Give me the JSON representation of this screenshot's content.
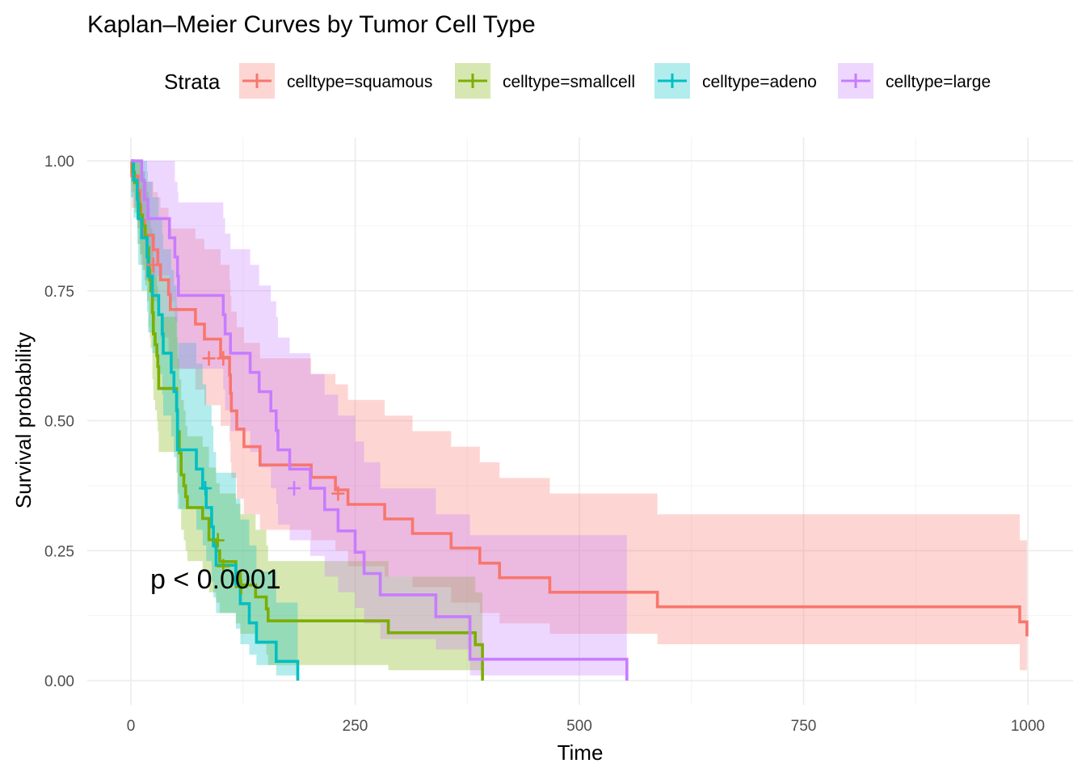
{
  "chart_data": {
    "type": "line",
    "title": "Kaplan–Meier Curves by Tumor Cell Type",
    "xlabel": "Time",
    "ylabel": "Survival probability",
    "xlim": [
      0,
      1000
    ],
    "ylim": [
      0,
      1
    ],
    "x_ticks": [
      0,
      250,
      500,
      750,
      1000
    ],
    "x_tick_labels": [
      "0",
      "250",
      "500",
      "750",
      "1000"
    ],
    "y_ticks": [
      0,
      0.25,
      0.5,
      0.75,
      1
    ],
    "y_tick_labels": [
      "0.00",
      "0.25",
      "0.50",
      "0.75",
      "1.00"
    ],
    "grid": true,
    "legend": {
      "title": "Strata",
      "position": "top"
    },
    "annotation": "p < 0.0001",
    "series": [
      {
        "name": "celltype=squamous",
        "color": "#F8766D",
        "times": [
          0,
          1,
          8,
          10,
          11,
          15,
          25,
          30,
          33,
          42,
          44,
          72,
          82,
          100,
          110,
          111,
          112,
          118,
          126,
          144,
          201,
          228,
          242,
          283,
          314,
          357,
          389,
          411,
          467,
          587,
          991,
          999
        ],
        "surv": [
          1,
          0.971,
          0.943,
          0.914,
          0.886,
          0.857,
          0.829,
          0.8,
          0.771,
          0.743,
          0.714,
          0.686,
          0.657,
          0.622,
          0.588,
          0.553,
          0.519,
          0.484,
          0.45,
          0.415,
          0.391,
          0.367,
          0.339,
          0.311,
          0.283,
          0.255,
          0.226,
          0.198,
          0.17,
          0.142,
          0.113,
          0.085
        ],
        "lower": [
          0.94,
          0.91,
          0.87,
          0.84,
          0.8,
          0.77,
          0.73,
          0.7,
          0.66,
          0.63,
          0.6,
          0.56,
          0.53,
          0.49,
          0.46,
          0.42,
          0.39,
          0.35,
          0.32,
          0.29,
          0.27,
          0.25,
          0.22,
          0.2,
          0.18,
          0.15,
          0.13,
          0.11,
          0.09,
          0.07,
          0.02,
          0.0
        ],
        "upper": [
          1.0,
          1.0,
          1.0,
          1.0,
          0.98,
          0.96,
          0.94,
          0.93,
          0.91,
          0.89,
          0.87,
          0.85,
          0.83,
          0.8,
          0.77,
          0.74,
          0.71,
          0.68,
          0.65,
          0.62,
          0.59,
          0.57,
          0.54,
          0.51,
          0.48,
          0.45,
          0.42,
          0.39,
          0.36,
          0.32,
          0.27,
          0.25
        ],
        "censored": [
          [
            25,
            0.8
          ],
          [
            87,
            0.62
          ],
          [
            103,
            0.62
          ],
          [
            231,
            0.36
          ]
        ]
      },
      {
        "name": "celltype=smallcell",
        "color": "#7CAE00",
        "times": [
          0,
          2,
          4,
          7,
          8,
          10,
          13,
          16,
          18,
          20,
          21,
          22,
          24,
          25,
          27,
          29,
          30,
          31,
          51,
          52,
          54,
          56,
          59,
          61,
          63,
          80,
          87,
          95,
          99,
          117,
          122,
          139,
          151,
          153,
          287,
          384,
          392
        ],
        "surv": [
          1,
          0.979,
          0.958,
          0.938,
          0.917,
          0.896,
          0.875,
          0.854,
          0.833,
          0.792,
          0.771,
          0.75,
          0.708,
          0.667,
          0.646,
          0.625,
          0.604,
          0.562,
          0.521,
          0.479,
          0.438,
          0.396,
          0.375,
          0.354,
          0.333,
          0.312,
          0.271,
          0.25,
          0.229,
          0.208,
          0.184,
          0.161,
          0.138,
          0.115,
          0.092,
          0.069,
          0.0
        ],
        "lower": [
          0.96,
          0.94,
          0.9,
          0.87,
          0.84,
          0.82,
          0.79,
          0.76,
          0.73,
          0.68,
          0.66,
          0.64,
          0.58,
          0.54,
          0.52,
          0.5,
          0.48,
          0.44,
          0.4,
          0.36,
          0.33,
          0.29,
          0.27,
          0.25,
          0.23,
          0.21,
          0.17,
          0.15,
          0.13,
          0.11,
          0.09,
          0.07,
          0.05,
          0.03,
          0.02,
          0.02,
          0.0
        ],
        "upper": [
          1.0,
          1.0,
          1.0,
          1.0,
          1.0,
          1.0,
          0.98,
          0.96,
          0.94,
          0.91,
          0.89,
          0.87,
          0.84,
          0.8,
          0.78,
          0.76,
          0.74,
          0.7,
          0.66,
          0.62,
          0.58,
          0.54,
          0.52,
          0.49,
          0.47,
          0.45,
          0.41,
          0.38,
          0.36,
          0.34,
          0.32,
          0.29,
          0.26,
          0.23,
          0.2,
          0.17,
          0.0
        ],
        "censored": [
          [
            97,
            0.27
          ],
          [
            103,
            0.22
          ],
          [
            123,
            0.18
          ]
        ]
      },
      {
        "name": "celltype=adeno",
        "color": "#00BFC4",
        "times": [
          0,
          3,
          7,
          8,
          12,
          18,
          19,
          24,
          31,
          35,
          36,
          45,
          48,
          51,
          52,
          73,
          80,
          84,
          90,
          92,
          95,
          117,
          122,
          132,
          140,
          162,
          186
        ],
        "surv": [
          1,
          0.963,
          0.926,
          0.889,
          0.852,
          0.815,
          0.778,
          0.741,
          0.704,
          0.667,
          0.63,
          0.593,
          0.556,
          0.519,
          0.444,
          0.407,
          0.37,
          0.333,
          0.296,
          0.259,
          0.222,
          0.185,
          0.148,
          0.111,
          0.074,
          0.037,
          0.0
        ],
        "lower": [
          0.93,
          0.89,
          0.84,
          0.8,
          0.75,
          0.71,
          0.67,
          0.63,
          0.59,
          0.55,
          0.51,
          0.47,
          0.43,
          0.4,
          0.33,
          0.29,
          0.26,
          0.23,
          0.19,
          0.16,
          0.13,
          0.1,
          0.07,
          0.05,
          0.03,
          0.01,
          0.0
        ],
        "upper": [
          1.0,
          1.0,
          1.0,
          1.0,
          1.0,
          0.98,
          0.96,
          0.93,
          0.89,
          0.86,
          0.83,
          0.79,
          0.76,
          0.72,
          0.65,
          0.61,
          0.57,
          0.53,
          0.49,
          0.44,
          0.4,
          0.35,
          0.31,
          0.26,
          0.21,
          0.15,
          0.0
        ],
        "censored": [
          [
            83,
            0.37
          ]
        ]
      },
      {
        "name": "celltype=large",
        "color": "#C77CFF",
        "times": [
          0,
          12,
          15,
          19,
          43,
          49,
          52,
          53,
          103,
          105,
          111,
          133,
          143,
          156,
          162,
          164,
          177,
          200,
          216,
          231,
          250,
          260,
          278,
          340,
          378,
          553
        ],
        "surv": [
          1,
          0.963,
          0.926,
          0.889,
          0.852,
          0.815,
          0.778,
          0.741,
          0.704,
          0.667,
          0.63,
          0.593,
          0.556,
          0.519,
          0.481,
          0.444,
          0.407,
          0.37,
          0.329,
          0.288,
          0.247,
          0.206,
          0.165,
          0.123,
          0.041,
          0.0
        ],
        "lower": [
          1.0,
          0.89,
          0.84,
          0.78,
          0.73,
          0.69,
          0.65,
          0.6,
          0.56,
          0.52,
          0.48,
          0.44,
          0.41,
          0.37,
          0.34,
          0.3,
          0.27,
          0.24,
          0.2,
          0.17,
          0.14,
          0.11,
          0.08,
          0.06,
          0.01,
          0.0
        ],
        "upper": [
          1.0,
          1.0,
          1.0,
          1.0,
          1.0,
          0.96,
          0.94,
          0.92,
          0.89,
          0.86,
          0.83,
          0.8,
          0.76,
          0.73,
          0.7,
          0.66,
          0.63,
          0.59,
          0.55,
          0.51,
          0.46,
          0.42,
          0.37,
          0.32,
          0.28,
          0.0
        ],
        "censored": [
          [
            182,
            0.37
          ]
        ]
      }
    ]
  }
}
